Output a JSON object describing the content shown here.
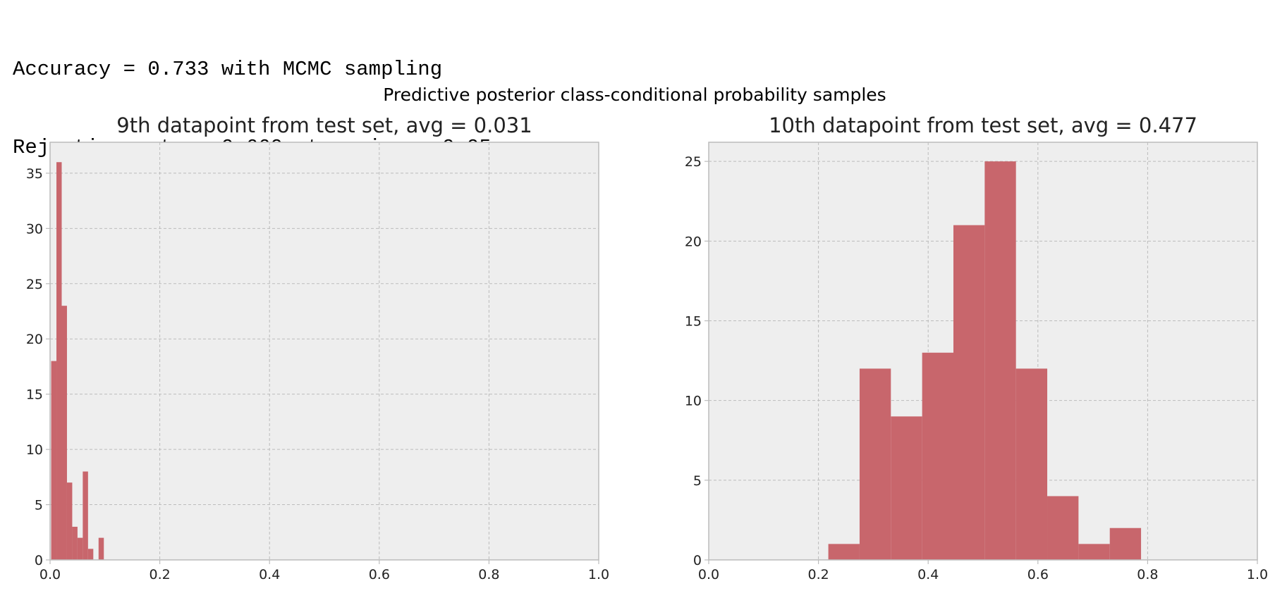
{
  "console": {
    "line1": "Accuracy = 0.733 with MCMC sampling",
    "line2": "Rejection rate = 0.660 at variance 0.05"
  },
  "colors": {
    "bar": "#c8666c",
    "axes_bg": "#eeeeee",
    "grid": "#bcbcbc",
    "spine": "#bcbcbc",
    "text": "#222222"
  },
  "chart_data": {
    "suptitle": "Predictive posterior class-conditional probability samples",
    "charts": [
      {
        "type": "bar",
        "title": "9th datapoint from test set, avg = 0.031",
        "xlim": [
          0,
          1
        ],
        "ylim": [
          0,
          37.8
        ],
        "grid": true,
        "xticks": [
          0.0,
          0.2,
          0.4,
          0.6,
          0.8,
          1.0
        ],
        "xtick_labels": [
          "0.0",
          "0.2",
          "0.4",
          "0.6",
          "0.8",
          "1.0"
        ],
        "yticks": [
          0,
          5,
          10,
          15,
          20,
          25,
          30,
          35
        ],
        "ytick_labels": [
          "0",
          "5",
          "10",
          "15",
          "20",
          "25",
          "30",
          "35"
        ],
        "bin_width": 0.0096,
        "bins": [
          {
            "x0": 0.002,
            "value": 18
          },
          {
            "x0": 0.0116,
            "value": 36
          },
          {
            "x0": 0.0212,
            "value": 23
          },
          {
            "x0": 0.0308,
            "value": 7
          },
          {
            "x0": 0.0404,
            "value": 3
          },
          {
            "x0": 0.05,
            "value": 2
          },
          {
            "x0": 0.0596,
            "value": 8
          },
          {
            "x0": 0.0692,
            "value": 1
          },
          {
            "x0": 0.0788,
            "value": 0
          },
          {
            "x0": 0.0884,
            "value": 2
          }
        ]
      },
      {
        "type": "bar",
        "title": "10th datapoint from test set, avg = 0.477",
        "xlim": [
          0,
          1
        ],
        "ylim": [
          0,
          26.2
        ],
        "grid": true,
        "xticks": [
          0.0,
          0.2,
          0.4,
          0.6,
          0.8,
          1.0
        ],
        "xtick_labels": [
          "0.0",
          "0.2",
          "0.4",
          "0.6",
          "0.8",
          "1.0"
        ],
        "yticks": [
          0,
          5,
          10,
          15,
          20,
          25
        ],
        "ytick_labels": [
          "0",
          "5",
          "10",
          "15",
          "20",
          "25"
        ],
        "bin_width": 0.057,
        "bins": [
          {
            "x0": 0.218,
            "value": 1
          },
          {
            "x0": 0.275,
            "value": 12
          },
          {
            "x0": 0.332,
            "value": 9
          },
          {
            "x0": 0.389,
            "value": 13
          },
          {
            "x0": 0.446,
            "value": 21
          },
          {
            "x0": 0.503,
            "value": 25
          },
          {
            "x0": 0.56,
            "value": 12
          },
          {
            "x0": 0.617,
            "value": 4
          },
          {
            "x0": 0.674,
            "value": 1
          },
          {
            "x0": 0.731,
            "value": 2
          }
        ]
      }
    ]
  }
}
